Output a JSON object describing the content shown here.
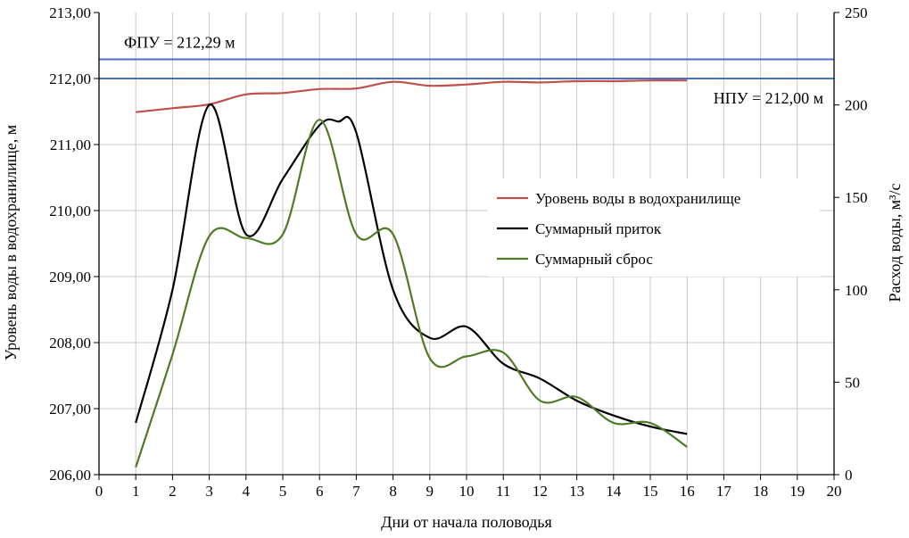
{
  "chart_data": {
    "type": "line",
    "xlabel": "Дни от начала половодья",
    "ylabel_left": "Уровень воды в водохранилище, м",
    "ylabel_right": "Расход воды, м³/с",
    "xlim": [
      0,
      20
    ],
    "ylim_left": [
      206,
      213
    ],
    "ylim_right": [
      0,
      250
    ],
    "x_ticks": [
      "0",
      "1",
      "2",
      "3",
      "4",
      "5",
      "6",
      "7",
      "8",
      "9",
      "10",
      "11",
      "12",
      "13",
      "14",
      "15",
      "16",
      "17",
      "18",
      "19",
      "20"
    ],
    "y_left_ticks": [
      "206,00",
      "207,00",
      "208,00",
      "209,00",
      "210,00",
      "211,00",
      "212,00",
      "213,00"
    ],
    "y_right_ticks": [
      "0",
      "50",
      "100",
      "150",
      "200",
      "250"
    ],
    "grid": true,
    "legend_position": "right",
    "reference_lines": [
      {
        "label": "ФПУ = 212,29 м",
        "value": 212.29,
        "color": "#4b6fc7"
      },
      {
        "label": "НПУ = 212,00 м",
        "value": 212.0,
        "color": "#4b6fc7"
      }
    ],
    "series": [
      {
        "name": "Уровень воды в водохранилище",
        "axis": "left",
        "color": "#c0504d",
        "x": [
          1,
          2,
          3,
          4,
          5,
          6,
          7,
          8,
          9,
          10,
          11,
          12,
          13,
          14,
          15,
          16
        ],
        "values": [
          211.49,
          211.55,
          211.61,
          211.76,
          211.78,
          211.84,
          211.85,
          211.95,
          211.89,
          211.91,
          211.95,
          211.94,
          211.96,
          211.96,
          211.97,
          211.97
        ]
      },
      {
        "name": "Суммарный приток",
        "axis": "right",
        "color": "#000000",
        "x": [
          1,
          2,
          3,
          4,
          5,
          6,
          6.5,
          7,
          8,
          9,
          10,
          11,
          12,
          13,
          14,
          15,
          16
        ],
        "values": [
          28,
          100,
          200,
          130,
          160,
          189,
          191,
          185,
          100,
          74,
          80,
          60,
          52,
          40,
          32,
          26,
          22
        ]
      },
      {
        "name": "Суммарный сброс",
        "axis": "right",
        "color": "#4f7a28",
        "x": [
          1,
          2,
          3,
          4,
          5,
          6,
          7,
          8,
          9,
          10,
          11,
          12,
          13,
          14,
          15,
          16
        ],
        "values": [
          4,
          65,
          129,
          128,
          130,
          192,
          130,
          130,
          63,
          64,
          66,
          40,
          42,
          28,
          28,
          15
        ]
      }
    ]
  }
}
